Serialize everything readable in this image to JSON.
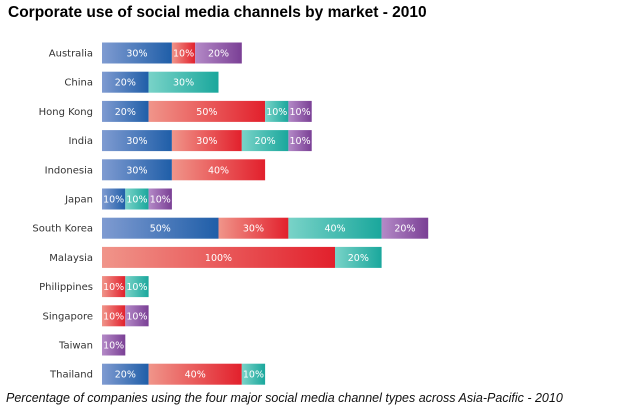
{
  "title": "Corporate use of social media channels by market - 2010",
  "caption": "Percentage of companies using the four major social media channel types across Asia-Pacific - 2010",
  "colors": {
    "series_1": [
      "#7f9bd1",
      "#1f5ea8"
    ],
    "series_2": [
      "#f0958a",
      "#e2202c"
    ],
    "series_3": [
      "#79d3c8",
      "#1aa79c"
    ],
    "series_4": [
      "#b48ac7",
      "#7a3f95"
    ]
  },
  "chart_data": {
    "type": "bar",
    "orientation": "horizontal",
    "stacked": true,
    "legend": "none",
    "grid": false,
    "categories": [
      "Australia",
      "China",
      "Hong Kong",
      "India",
      "Indonesia",
      "Japan",
      "South Korea",
      "Malaysia",
      "Philippines",
      "Singapore",
      "Taiwan",
      "Thailand"
    ],
    "rows": [
      {
        "category": "Australia",
        "segments": [
          {
            "series": 1,
            "value": 30,
            "label": "30%"
          },
          {
            "series": 2,
            "value": 10,
            "label": "10%"
          },
          {
            "series": 4,
            "value": 20,
            "label": "20%"
          }
        ]
      },
      {
        "category": "China",
        "segments": [
          {
            "series": 1,
            "value": 20,
            "label": "20%"
          },
          {
            "series": 3,
            "value": 30,
            "label": "30%"
          }
        ]
      },
      {
        "category": "Hong Kong",
        "segments": [
          {
            "series": 1,
            "value": 20,
            "label": "20%"
          },
          {
            "series": 2,
            "value": 50,
            "label": "50%"
          },
          {
            "series": 3,
            "value": 10,
            "label": "10%"
          },
          {
            "series": 4,
            "value": 10,
            "label": "10%"
          }
        ]
      },
      {
        "category": "India",
        "segments": [
          {
            "series": 1,
            "value": 30,
            "label": "30%"
          },
          {
            "series": 2,
            "value": 30,
            "label": "30%"
          },
          {
            "series": 3,
            "value": 20,
            "label": "20%"
          },
          {
            "series": 4,
            "value": 10,
            "label": "10%"
          }
        ]
      },
      {
        "category": "Indonesia",
        "segments": [
          {
            "series": 1,
            "value": 30,
            "label": "30%"
          },
          {
            "series": 2,
            "value": 40,
            "label": "40%"
          }
        ]
      },
      {
        "category": "Japan",
        "segments": [
          {
            "series": 1,
            "value": 10,
            "label": "10%"
          },
          {
            "series": 3,
            "value": 10,
            "label": "10%"
          },
          {
            "series": 4,
            "value": 10,
            "label": "10%"
          }
        ]
      },
      {
        "category": "South Korea",
        "segments": [
          {
            "series": 1,
            "value": 50,
            "label": "50%"
          },
          {
            "series": 2,
            "value": 30,
            "label": "30%"
          },
          {
            "series": 3,
            "value": 40,
            "label": "40%"
          },
          {
            "series": 4,
            "value": 20,
            "label": "20%"
          }
        ]
      },
      {
        "category": "Malaysia",
        "segments": [
          {
            "series": 2,
            "value": 100,
            "label": "100%"
          },
          {
            "series": 3,
            "value": 20,
            "label": "20%"
          }
        ]
      },
      {
        "category": "Philippines",
        "segments": [
          {
            "series": 2,
            "value": 10,
            "label": "10%"
          },
          {
            "series": 3,
            "value": 10,
            "label": "10%"
          }
        ]
      },
      {
        "category": "Singapore",
        "segments": [
          {
            "series": 2,
            "value": 10,
            "label": "10%"
          },
          {
            "series": 4,
            "value": 10,
            "label": "10%"
          }
        ]
      },
      {
        "category": "Taiwan",
        "segments": [
          {
            "series": 4,
            "value": 10,
            "label": "10%"
          }
        ]
      },
      {
        "category": "Thailand",
        "segments": [
          {
            "series": 1,
            "value": 20,
            "label": "20%"
          },
          {
            "series": 2,
            "value": 40,
            "label": "40%"
          },
          {
            "series": 3,
            "value": 10,
            "label": "10%"
          }
        ]
      }
    ]
  }
}
